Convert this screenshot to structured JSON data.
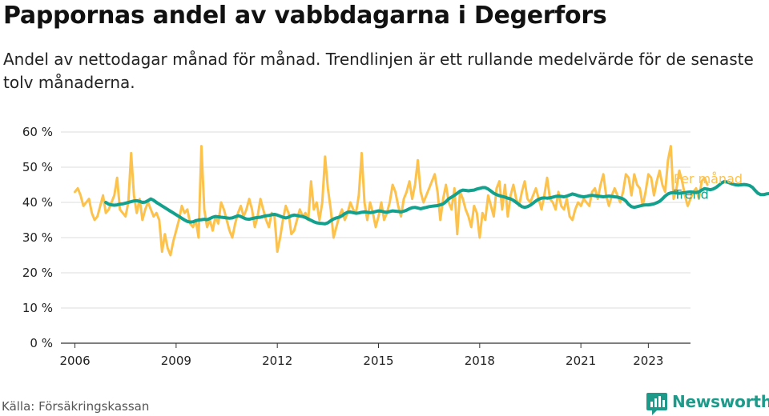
{
  "title": "Pappornas andel av vabbdagarna i Degerfors",
  "subtitle": "Andel av nettodagar månad för månad. Trendlinjen är ett rullande medelvärde för de senaste tolv månaderna.",
  "source": "Källa: Försäkringskassan",
  "brand": {
    "name": "Newsworthy",
    "color": "#1d9a8a",
    "icon": "bar-chart-speech-bubble-icon"
  },
  "chart_data": {
    "type": "line",
    "x_axis": {
      "type": "time",
      "range": [
        "2005-08",
        "2024-04"
      ],
      "ticks": [
        "2006",
        "2009",
        "2012",
        "2015",
        "2018",
        "2021",
        "2023"
      ]
    },
    "y_axis": {
      "range": [
        0,
        60
      ],
      "unit": "%",
      "ticks": [
        "0 %",
        "10 %",
        "20 %",
        "30 %",
        "40 %",
        "50 %",
        "60 %"
      ],
      "grid": true
    },
    "legend": {
      "placement": "right-end-of-lines"
    },
    "series": [
      {
        "name": "Per månad",
        "color": "#fcc24c",
        "start": "2006-01",
        "frequency": "monthly",
        "values": [
          43,
          44,
          42,
          39,
          40,
          41,
          37,
          35,
          36,
          39,
          42,
          37,
          38,
          40,
          42,
          47,
          38,
          37,
          36,
          40,
          54,
          42,
          37,
          41,
          35,
          38,
          40,
          38,
          36,
          37,
          35,
          26,
          31,
          27,
          25,
          29,
          32,
          35,
          39,
          37,
          38,
          34,
          33,
          35,
          30,
          56,
          38,
          33,
          35,
          32,
          36,
          34,
          40,
          38,
          35,
          32,
          30,
          34,
          37,
          39,
          36,
          38,
          41,
          38,
          33,
          36,
          41,
          38,
          35,
          33,
          37,
          36,
          26,
          30,
          35,
          39,
          37,
          31,
          32,
          35,
          38,
          36,
          37,
          35,
          46,
          38,
          40,
          35,
          40,
          53,
          44,
          38,
          30,
          33,
          36,
          38,
          35,
          37,
          40,
          38,
          37,
          42,
          54,
          40,
          35,
          40,
          37,
          33,
          36,
          40,
          35,
          37,
          40,
          45,
          43,
          39,
          36,
          41,
          43,
          46,
          41,
          45,
          52,
          43,
          40,
          42,
          44,
          46,
          48,
          43,
          35,
          41,
          45,
          40,
          38,
          44,
          31,
          43,
          41,
          38,
          36,
          33,
          39,
          37,
          30,
          37,
          35,
          42,
          39,
          36,
          44,
          46,
          38,
          45,
          36,
          42,
          45,
          41,
          39,
          43,
          46,
          41,
          40,
          42,
          44,
          41,
          38,
          42,
          47,
          41,
          40,
          38,
          43,
          39,
          38,
          41,
          36,
          35,
          38,
          40,
          39,
          41,
          40,
          39,
          43,
          44,
          41,
          45,
          48,
          42,
          39,
          42,
          44,
          42,
          40,
          43,
          48,
          47,
          42,
          48,
          45,
          44,
          39,
          43,
          48,
          47,
          42,
          46,
          49,
          45,
          43,
          52,
          56,
          41,
          44,
          49,
          46,
          42,
          39,
          41,
          43,
          44,
          41,
          46,
          47,
          45
        ]
      },
      {
        "name": "Trend",
        "color": "#13a08d",
        "start": "2006-12",
        "frequency": "monthly",
        "values": [
          40,
          39.5,
          39.3,
          39.2,
          39.3,
          39.5,
          39.6,
          39.8,
          40,
          40.2,
          40.4,
          40.5,
          40.3,
          40,
          40.1,
          40.5,
          41,
          40.6,
          40,
          39.5,
          39,
          38.5,
          38,
          37.5,
          37,
          36.5,
          36,
          35.5,
          35,
          34.6,
          34.4,
          34.5,
          34.8,
          35,
          35.1,
          35.2,
          35.1,
          35.4,
          35.8,
          36,
          35.9,
          35.8,
          35.7,
          35.6,
          35.5,
          35.6,
          35.9,
          36.2,
          36,
          35.6,
          35.3,
          35.2,
          35.4,
          35.6,
          35.7,
          35.8,
          36,
          36.2,
          36.3,
          36.5,
          36.6,
          36.4,
          36.1,
          35.8,
          35.6,
          35.8,
          36.2,
          36.4,
          36.3,
          36.1,
          36,
          35.7,
          35.3,
          34.9,
          34.5,
          34.2,
          34.1,
          34,
          33.9,
          34.2,
          34.8,
          35.3,
          35.6,
          35.8,
          36.2,
          36.8,
          37.2,
          37.3,
          37.1,
          36.9,
          37,
          37.2,
          37.3,
          37.2,
          37.1,
          37.2,
          37.4,
          37.6,
          37.5,
          37.3,
          37.2,
          37.4,
          37.6,
          37.5,
          37.4,
          37.3,
          37.5,
          37.8,
          38.2,
          38.5,
          38.6,
          38.4,
          38.2,
          38.4,
          38.6,
          38.8,
          38.9,
          39,
          39.1,
          39.3,
          39.6,
          40.2,
          41,
          41.5,
          42,
          42.6,
          43.2,
          43.5,
          43.4,
          43.3,
          43.4,
          43.5,
          43.8,
          44,
          44.2,
          44.2,
          43.8,
          43.2,
          42.6,
          42.2,
          41.9,
          41.7,
          41.5,
          41.2,
          41,
          40.6,
          40,
          39.4,
          38.8,
          38.6,
          38.8,
          39.2,
          39.8,
          40.4,
          40.9,
          41.2,
          41.3,
          41.2,
          41.3,
          41.5,
          41.7,
          41.8,
          41.7,
          41.6,
          41.8,
          42.1,
          42.4,
          42.2,
          41.9,
          41.7,
          41.6,
          41.7,
          41.9,
          42,
          41.9,
          41.8,
          41.7,
          41.6,
          41.7,
          41.8,
          41.7,
          41.6,
          41.5,
          41.3,
          41,
          40.4,
          39.4,
          38.8,
          38.6,
          38.8,
          39,
          39.2,
          39.3,
          39.3,
          39.4,
          39.6,
          39.9,
          40.3,
          41,
          41.8,
          42.4,
          42.7,
          42.8,
          42.7,
          42.6,
          42.7,
          42.8,
          42.9,
          43,
          42.9,
          42.8,
          43,
          43.5,
          43.9,
          43.8,
          43.6,
          43.8,
          44.2,
          44.8,
          45.5,
          45.9,
          45.8,
          45.5,
          45.2,
          45,
          44.9,
          45,
          45.1,
          45,
          44.8,
          44.3,
          43.4,
          42.6,
          42.2,
          42.2,
          42.4,
          42.5,
          42.4
        ]
      }
    ]
  }
}
